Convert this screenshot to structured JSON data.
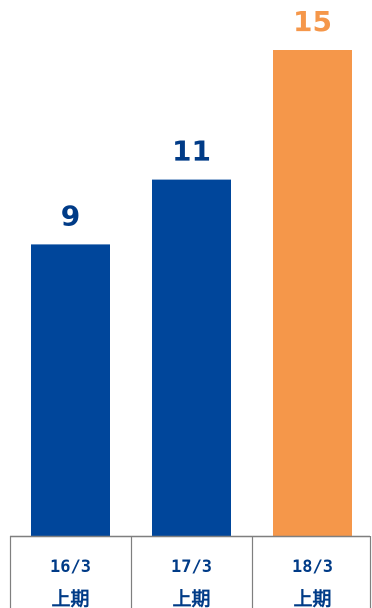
{
  "colors": {
    "primary_bar": "#00469b",
    "highlight_bar": "#f5974a",
    "axis_line": "#7f7f7f",
    "text_dark": "#003b87"
  },
  "chart_data": {
    "type": "bar",
    "categories": [
      "16/3",
      "17/3",
      "18/3"
    ],
    "category_sublabels": [
      "上期",
      "上期",
      "上期"
    ],
    "values": [
      9,
      11,
      15
    ],
    "highlight_index": 2,
    "ylim": [
      0,
      16
    ],
    "grid": false,
    "legend": "none"
  }
}
